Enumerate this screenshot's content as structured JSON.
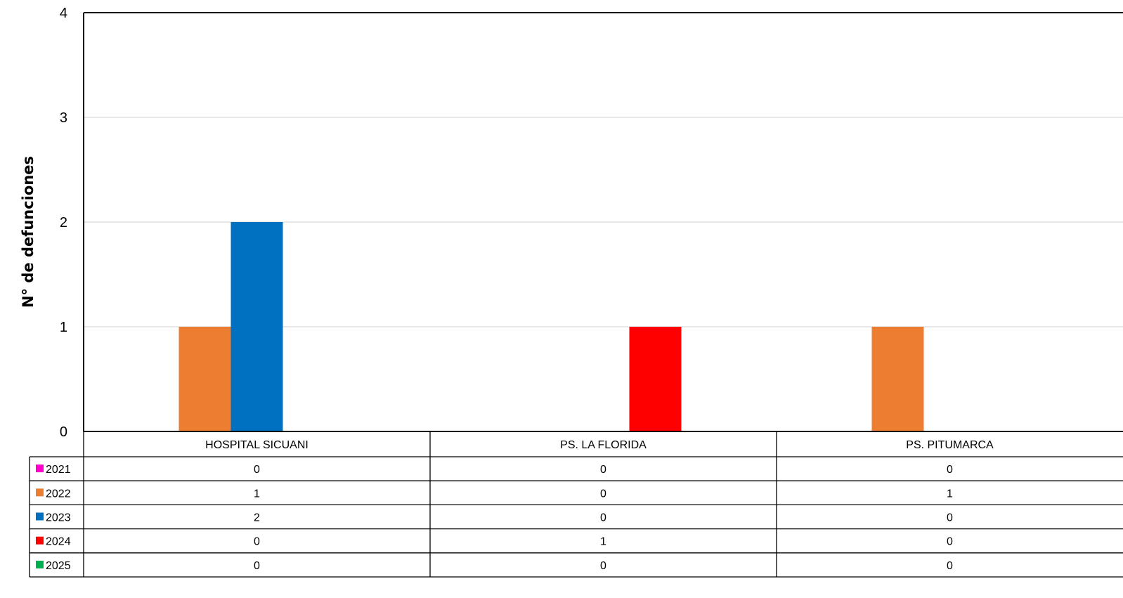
{
  "chart_data": {
    "type": "bar",
    "title": "",
    "xlabel": "",
    "ylabel": "N° de defunciones",
    "ylim": [
      0,
      4
    ],
    "yticks": [
      0,
      1,
      2,
      3,
      4
    ],
    "grid": true,
    "legend": "data-table",
    "categories": [
      "HOSPITAL SICUANI",
      "PS. LA FLORIDA",
      "PS. PITUMARCA"
    ],
    "series": [
      {
        "name": "2021",
        "color": "#ff00cc",
        "values": [
          0,
          0,
          0
        ]
      },
      {
        "name": "2022",
        "color": "#ed7d31",
        "values": [
          1,
          0,
          1
        ]
      },
      {
        "name": "2023",
        "color": "#0070c0",
        "values": [
          2,
          0,
          0
        ]
      },
      {
        "name": "2024",
        "color": "#ff0000",
        "values": [
          0,
          1,
          0
        ]
      },
      {
        "name": "2025",
        "color": "#00b050",
        "values": [
          0,
          0,
          0
        ]
      }
    ]
  }
}
